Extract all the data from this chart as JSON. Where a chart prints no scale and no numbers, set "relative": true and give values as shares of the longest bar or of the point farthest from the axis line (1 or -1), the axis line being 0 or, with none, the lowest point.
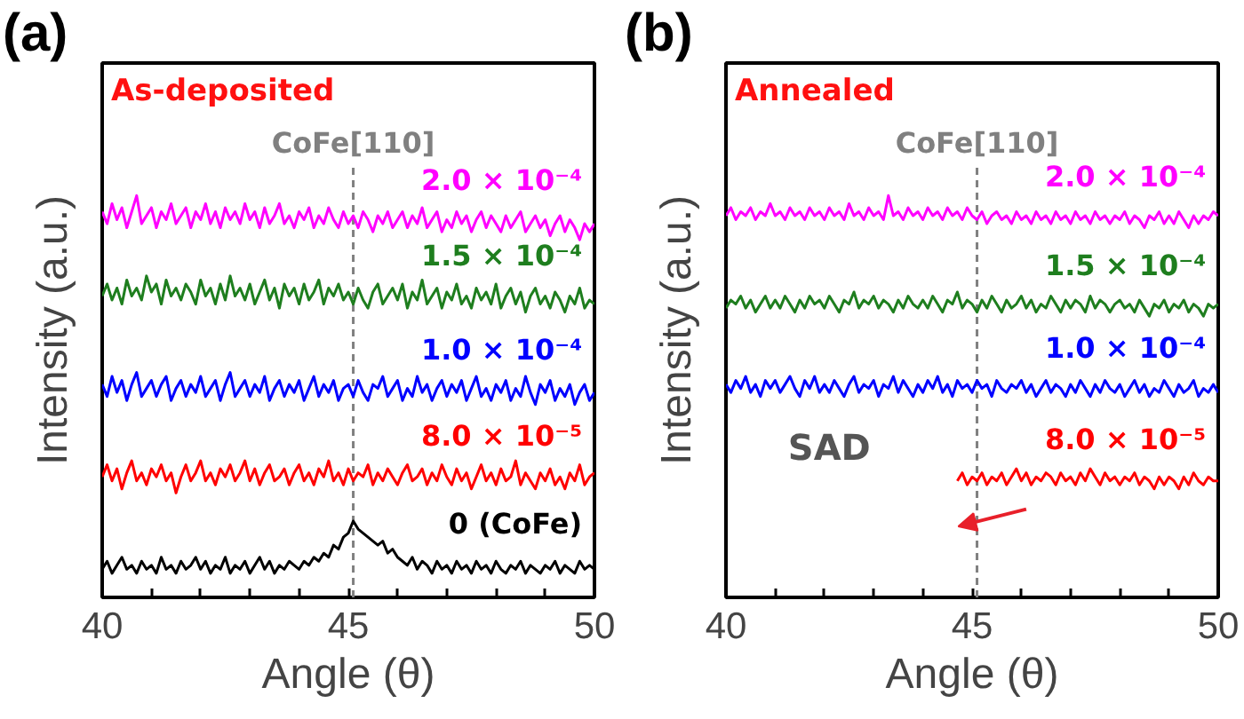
{
  "chart_data": [
    {
      "type": "line",
      "title": "(a)",
      "subtitle": "As-deposited",
      "xlabel": "Angle (θ)",
      "ylabel": "Intensity (a.u.)",
      "relative": true,
      "xlim": [
        40,
        50
      ],
      "xticks": [
        40,
        {
          "value": 41,
          "label": null
        },
        {
          "value": 42,
          "label": null
        },
        {
          "value": 43,
          "label": null
        },
        {
          "value": 44,
          "label": null
        },
        45,
        {
          "value": 46,
          "label": null
        },
        {
          "value": 47,
          "label": null
        },
        {
          "value": 48,
          "label": null
        },
        {
          "value": 49,
          "label": null
        },
        50
      ],
      "ref_lines": [
        {
          "axis": "x",
          "value": 45.1,
          "label": "CoFe[110]",
          "color": "#808080",
          "line_style": "dashed"
        }
      ],
      "x": [
        40,
        40.1,
        40.2,
        40.3,
        40.4,
        40.5,
        40.6,
        40.7,
        40.8,
        40.9,
        41,
        41.1,
        41.2,
        41.3,
        41.4,
        41.5,
        41.6,
        41.7,
        41.8,
        41.9,
        42,
        42.1,
        42.2,
        42.3,
        42.4,
        42.5,
        42.6,
        42.7,
        42.8,
        42.9,
        43,
        43.1,
        43.2,
        43.3,
        43.4,
        43.5,
        43.6,
        43.7,
        43.8,
        43.9,
        44,
        44.1,
        44.2,
        44.3,
        44.4,
        44.5,
        44.6,
        44.7,
        44.8,
        44.9,
        45,
        45.1,
        45.2,
        45.3,
        45.4,
        45.5,
        45.6,
        45.7,
        45.8,
        45.9,
        46,
        46.1,
        46.2,
        46.3,
        46.4,
        46.5,
        46.6,
        46.7,
        46.8,
        46.9,
        47,
        47.1,
        47.2,
        47.3,
        47.4,
        47.5,
        47.6,
        47.7,
        47.8,
        47.9,
        48,
        48.1,
        48.2,
        48.3,
        48.4,
        48.5,
        48.6,
        48.7,
        48.8,
        48.9,
        49,
        49.1,
        49.2,
        49.3,
        49.4,
        49.5,
        49.6,
        49.7,
        49.8,
        49.9,
        50
      ],
      "series": [
        {
          "name": "2.0 × 10⁻⁴",
          "color": "#ff00ff",
          "values": [
            0.96,
            0.93,
            0.98,
            0.94,
            0.97,
            0.92,
            0.96,
            1.0,
            0.93,
            0.95,
            0.97,
            0.92,
            0.96,
            0.94,
            0.98,
            0.93,
            0.95,
            0.97,
            0.92,
            0.96,
            0.94,
            0.98,
            0.93,
            0.96,
            0.92,
            0.97,
            0.94,
            0.96,
            0.93,
            0.98,
            0.94,
            0.96,
            0.92,
            0.97,
            0.93,
            0.95,
            0.98,
            0.93,
            0.95,
            0.92,
            0.96,
            0.94,
            0.97,
            0.92,
            0.95,
            0.93,
            0.97,
            0.94,
            0.92,
            0.96,
            0.93,
            0.95,
            0.92,
            0.96,
            0.94,
            0.91,
            0.95,
            0.93,
            0.96,
            0.92,
            0.94,
            0.96,
            0.92,
            0.95,
            0.93,
            0.97,
            0.92,
            0.94,
            0.96,
            0.91,
            0.94,
            0.92,
            0.96,
            0.93,
            0.95,
            0.91,
            0.94,
            0.96,
            0.92,
            0.95,
            0.93,
            0.91,
            0.95,
            0.92,
            0.94,
            0.96,
            0.91,
            0.93,
            0.95,
            0.92,
            0.94,
            0.9,
            0.93,
            0.95,
            0.91,
            0.94,
            0.92,
            0.89,
            0.93,
            0.91,
            0.93
          ]
        },
        {
          "name": "1.5 × 10⁻⁴",
          "color": "#1e7e1e",
          "values": [
            0.75,
            0.78,
            0.74,
            0.77,
            0.73,
            0.79,
            0.75,
            0.77,
            0.74,
            0.8,
            0.76,
            0.78,
            0.73,
            0.79,
            0.75,
            0.77,
            0.74,
            0.78,
            0.76,
            0.73,
            0.79,
            0.75,
            0.77,
            0.73,
            0.78,
            0.74,
            0.8,
            0.75,
            0.77,
            0.74,
            0.78,
            0.73,
            0.76,
            0.79,
            0.74,
            0.77,
            0.72,
            0.78,
            0.75,
            0.77,
            0.73,
            0.78,
            0.74,
            0.76,
            0.79,
            0.73,
            0.77,
            0.75,
            0.78,
            0.74,
            0.76,
            0.73,
            0.77,
            0.74,
            0.72,
            0.76,
            0.78,
            0.73,
            0.75,
            0.77,
            0.74,
            0.78,
            0.72,
            0.76,
            0.74,
            0.79,
            0.73,
            0.75,
            0.77,
            0.72,
            0.76,
            0.74,
            0.78,
            0.73,
            0.75,
            0.72,
            0.77,
            0.74,
            0.76,
            0.73,
            0.78,
            0.72,
            0.75,
            0.77,
            0.73,
            0.76,
            0.71,
            0.75,
            0.77,
            0.73,
            0.75,
            0.72,
            0.76,
            0.74,
            0.71,
            0.75,
            0.73,
            0.77,
            0.72,
            0.74,
            0.73
          ]
        },
        {
          "name": "1.0 × 10⁻⁴",
          "color": "#0000ff",
          "values": [
            0.53,
            0.5,
            0.55,
            0.51,
            0.54,
            0.49,
            0.53,
            0.56,
            0.5,
            0.52,
            0.54,
            0.5,
            0.53,
            0.55,
            0.49,
            0.52,
            0.54,
            0.5,
            0.53,
            0.51,
            0.55,
            0.5,
            0.52,
            0.54,
            0.49,
            0.53,
            0.56,
            0.5,
            0.52,
            0.54,
            0.5,
            0.53,
            0.51,
            0.55,
            0.49,
            0.52,
            0.54,
            0.5,
            0.53,
            0.51,
            0.54,
            0.49,
            0.52,
            0.55,
            0.5,
            0.53,
            0.51,
            0.54,
            0.49,
            0.52,
            0.53,
            0.5,
            0.54,
            0.51,
            0.49,
            0.53,
            0.52,
            0.55,
            0.5,
            0.52,
            0.54,
            0.49,
            0.52,
            0.5,
            0.55,
            0.51,
            0.53,
            0.49,
            0.52,
            0.54,
            0.5,
            0.53,
            0.51,
            0.54,
            0.49,
            0.52,
            0.55,
            0.5,
            0.52,
            0.49,
            0.53,
            0.51,
            0.54,
            0.49,
            0.52,
            0.5,
            0.55,
            0.51,
            0.48,
            0.53,
            0.51,
            0.54,
            0.49,
            0.52,
            0.5,
            0.53,
            0.48,
            0.51,
            0.53,
            0.49,
            0.51
          ]
        },
        {
          "name": "8.0 × 10⁻⁵",
          "color": "#ff0000",
          "values": [
            0.3,
            0.33,
            0.29,
            0.32,
            0.27,
            0.31,
            0.34,
            0.29,
            0.31,
            0.28,
            0.32,
            0.3,
            0.33,
            0.29,
            0.31,
            0.26,
            0.3,
            0.33,
            0.29,
            0.31,
            0.34,
            0.29,
            0.31,
            0.28,
            0.32,
            0.3,
            0.33,
            0.29,
            0.31,
            0.34,
            0.29,
            0.32,
            0.28,
            0.31,
            0.33,
            0.29,
            0.3,
            0.32,
            0.28,
            0.31,
            0.33,
            0.29,
            0.31,
            0.28,
            0.32,
            0.3,
            0.34,
            0.29,
            0.31,
            0.28,
            0.32,
            0.29,
            0.31,
            0.3,
            0.33,
            0.28,
            0.31,
            0.29,
            0.32,
            0.3,
            0.28,
            0.31,
            0.33,
            0.29,
            0.3,
            0.32,
            0.28,
            0.31,
            0.29,
            0.33,
            0.3,
            0.28,
            0.32,
            0.29,
            0.31,
            0.27,
            0.3,
            0.33,
            0.29,
            0.31,
            0.28,
            0.32,
            0.29,
            0.3,
            0.34,
            0.28,
            0.31,
            0.29,
            0.27,
            0.31,
            0.29,
            0.32,
            0.28,
            0.3,
            0.27,
            0.31,
            0.29,
            0.33,
            0.28,
            0.3,
            0.31
          ]
        },
        {
          "name": "0 (CoFe)",
          "color": "#000000",
          "values": [
            0.07,
            0.09,
            0.06,
            0.08,
            0.1,
            0.07,
            0.08,
            0.06,
            0.09,
            0.07,
            0.08,
            0.06,
            0.1,
            0.07,
            0.08,
            0.06,
            0.09,
            0.07,
            0.08,
            0.1,
            0.07,
            0.09,
            0.06,
            0.08,
            0.07,
            0.1,
            0.06,
            0.08,
            0.07,
            0.09,
            0.06,
            0.08,
            0.1,
            0.07,
            0.09,
            0.06,
            0.08,
            0.07,
            0.09,
            0.08,
            0.07,
            0.09,
            0.08,
            0.1,
            0.09,
            0.11,
            0.1,
            0.13,
            0.12,
            0.15,
            0.16,
            0.19,
            0.17,
            0.16,
            0.15,
            0.14,
            0.13,
            0.14,
            0.11,
            0.12,
            0.1,
            0.09,
            0.08,
            0.1,
            0.07,
            0.09,
            0.08,
            0.06,
            0.09,
            0.07,
            0.08,
            0.06,
            0.09,
            0.07,
            0.08,
            0.06,
            0.09,
            0.07,
            0.08,
            0.06,
            0.09,
            0.07,
            0.06,
            0.08,
            0.07,
            0.09,
            0.06,
            0.08,
            0.07,
            0.06,
            0.08,
            0.07,
            0.09,
            0.06,
            0.08,
            0.07,
            0.06,
            0.09,
            0.07,
            0.08,
            0.07
          ]
        }
      ]
    },
    {
      "type": "line",
      "title": "(b)",
      "subtitle": "Annealed",
      "xlabel": "Angle (θ)",
      "ylabel": "Intensity (a.u.)",
      "relative": true,
      "xlim": [
        40,
        50
      ],
      "xticks": [
        40,
        {
          "value": 41,
          "label": null
        },
        {
          "value": 42,
          "label": null
        },
        {
          "value": 43,
          "label": null
        },
        {
          "value": 44,
          "label": null
        },
        45,
        {
          "value": 46,
          "label": null
        },
        {
          "value": 47,
          "label": null
        },
        {
          "value": 48,
          "label": null
        },
        {
          "value": 49,
          "label": null
        },
        50
      ],
      "ref_lines": [
        {
          "axis": "x",
          "value": 45.1,
          "label": "CoFe[110]",
          "color": "#808080",
          "line_style": "dashed"
        }
      ],
      "annotations": [
        "SAD"
      ],
      "x": [
        40,
        40.1,
        40.2,
        40.3,
        40.4,
        40.5,
        40.6,
        40.7,
        40.8,
        40.9,
        41,
        41.1,
        41.2,
        41.3,
        41.4,
        41.5,
        41.6,
        41.7,
        41.8,
        41.9,
        42,
        42.1,
        42.2,
        42.3,
        42.4,
        42.5,
        42.6,
        42.7,
        42.8,
        42.9,
        43,
        43.1,
        43.2,
        43.3,
        43.4,
        43.5,
        43.6,
        43.7,
        43.8,
        43.9,
        44,
        44.1,
        44.2,
        44.3,
        44.4,
        44.5,
        44.6,
        44.7,
        44.8,
        44.9,
        45,
        45.1,
        45.2,
        45.3,
        45.4,
        45.5,
        45.6,
        45.7,
        45.8,
        45.9,
        46,
        46.1,
        46.2,
        46.3,
        46.4,
        46.5,
        46.6,
        46.7,
        46.8,
        46.9,
        47,
        47.1,
        47.2,
        47.3,
        47.4,
        47.5,
        47.6,
        47.7,
        47.8,
        47.9,
        48,
        48.1,
        48.2,
        48.3,
        48.4,
        48.5,
        48.6,
        48.7,
        48.8,
        48.9,
        49,
        49.1,
        49.2,
        49.3,
        49.4,
        49.5,
        49.6,
        49.7,
        49.8,
        49.9,
        50
      ],
      "series": [
        {
          "name": "2.0 × 10⁻⁴",
          "color": "#ff00ff",
          "values": [
            0.95,
            0.97,
            0.94,
            0.96,
            0.95,
            0.97,
            0.94,
            0.96,
            0.95,
            0.98,
            0.95,
            0.96,
            0.94,
            0.97,
            0.95,
            0.96,
            0.94,
            0.97,
            0.95,
            0.96,
            0.94,
            0.97,
            0.95,
            0.96,
            0.94,
            0.98,
            0.95,
            0.96,
            0.94,
            0.97,
            0.95,
            0.96,
            0.94,
            1.0,
            0.95,
            0.96,
            0.94,
            0.97,
            0.95,
            0.96,
            0.94,
            0.97,
            0.95,
            0.96,
            0.94,
            0.97,
            0.95,
            0.96,
            0.94,
            0.97,
            0.95,
            0.94,
            0.96,
            0.93,
            0.95,
            0.96,
            0.94,
            0.95,
            0.93,
            0.96,
            0.94,
            0.95,
            0.93,
            0.96,
            0.94,
            0.95,
            0.93,
            0.96,
            0.94,
            0.95,
            0.93,
            0.96,
            0.94,
            0.95,
            0.93,
            0.96,
            0.94,
            0.95,
            0.93,
            0.95,
            0.94,
            0.96,
            0.93,
            0.95,
            0.94,
            0.92,
            0.95,
            0.94,
            0.96,
            0.93,
            0.95,
            0.93,
            0.96,
            0.94,
            0.92,
            0.95,
            0.93,
            0.95,
            0.94,
            0.96,
            0.95
          ]
        },
        {
          "name": "1.5 × 10⁻⁴",
          "color": "#1e7e1e",
          "values": [
            0.72,
            0.74,
            0.73,
            0.75,
            0.72,
            0.74,
            0.71,
            0.73,
            0.75,
            0.72,
            0.74,
            0.72,
            0.75,
            0.73,
            0.71,
            0.74,
            0.72,
            0.75,
            0.73,
            0.74,
            0.72,
            0.75,
            0.73,
            0.71,
            0.74,
            0.73,
            0.76,
            0.72,
            0.74,
            0.73,
            0.75,
            0.72,
            0.74,
            0.73,
            0.71,
            0.74,
            0.72,
            0.75,
            0.73,
            0.72,
            0.74,
            0.72,
            0.75,
            0.73,
            0.71,
            0.74,
            0.73,
            0.76,
            0.72,
            0.74,
            0.73,
            0.71,
            0.74,
            0.72,
            0.75,
            0.73,
            0.71,
            0.74,
            0.72,
            0.73,
            0.75,
            0.72,
            0.74,
            0.71,
            0.73,
            0.72,
            0.75,
            0.73,
            0.71,
            0.74,
            0.72,
            0.74,
            0.73,
            0.71,
            0.75,
            0.72,
            0.74,
            0.73,
            0.71,
            0.73,
            0.74,
            0.72,
            0.73,
            0.71,
            0.74,
            0.72,
            0.7,
            0.73,
            0.72,
            0.74,
            0.71,
            0.73,
            0.72,
            0.74,
            0.71,
            0.73,
            0.72,
            0.7,
            0.73,
            0.72,
            0.73
          ]
        },
        {
          "name": "1.0 × 10⁻⁴",
          "color": "#0000ff",
          "values": [
            0.53,
            0.51,
            0.54,
            0.52,
            0.55,
            0.51,
            0.53,
            0.5,
            0.54,
            0.52,
            0.54,
            0.51,
            0.53,
            0.55,
            0.52,
            0.5,
            0.54,
            0.52,
            0.55,
            0.51,
            0.53,
            0.51,
            0.54,
            0.52,
            0.5,
            0.53,
            0.55,
            0.51,
            0.53,
            0.52,
            0.54,
            0.5,
            0.53,
            0.52,
            0.55,
            0.51,
            0.54,
            0.52,
            0.5,
            0.53,
            0.51,
            0.54,
            0.52,
            0.55,
            0.51,
            0.53,
            0.5,
            0.54,
            0.52,
            0.53,
            0.51,
            0.54,
            0.52,
            0.53,
            0.5,
            0.54,
            0.52,
            0.51,
            0.53,
            0.52,
            0.54,
            0.51,
            0.53,
            0.5,
            0.52,
            0.54,
            0.51,
            0.53,
            0.52,
            0.5,
            0.53,
            0.51,
            0.54,
            0.52,
            0.5,
            0.53,
            0.51,
            0.54,
            0.52,
            0.51,
            0.53,
            0.5,
            0.52,
            0.54,
            0.51,
            0.53,
            0.5,
            0.52,
            0.51,
            0.54,
            0.52,
            0.5,
            0.53,
            0.51,
            0.52,
            0.54,
            0.5,
            0.52,
            0.51,
            0.53,
            0.51
          ]
        },
        {
          "name": "8.0 × 10⁻⁵",
          "color": "#ff0000",
          "values": [
            null,
            null,
            null,
            null,
            null,
            null,
            null,
            null,
            null,
            null,
            null,
            null,
            null,
            null,
            null,
            null,
            null,
            null,
            null,
            null,
            null,
            null,
            null,
            null,
            null,
            null,
            null,
            null,
            null,
            null,
            null,
            null,
            null,
            null,
            null,
            null,
            null,
            null,
            null,
            null,
            null,
            null,
            null,
            null,
            null,
            null,
            null,
            0.29,
            0.31,
            0.28,
            0.3,
            0.29,
            0.31,
            0.28,
            0.3,
            0.29,
            0.31,
            0.28,
            0.3,
            0.32,
            0.29,
            0.31,
            0.28,
            0.3,
            0.29,
            0.31,
            0.3,
            0.28,
            0.31,
            0.29,
            0.3,
            0.28,
            0.31,
            0.29,
            0.32,
            0.3,
            0.28,
            0.31,
            0.29,
            0.3,
            0.28,
            0.3,
            0.29,
            0.31,
            0.28,
            0.3,
            0.29,
            0.27,
            0.3,
            0.28,
            0.3,
            0.29,
            0.27,
            0.3,
            0.28,
            0.31,
            0.29,
            0.28,
            0.3,
            0.29,
            0.29
          ]
        }
      ]
    }
  ]
}
